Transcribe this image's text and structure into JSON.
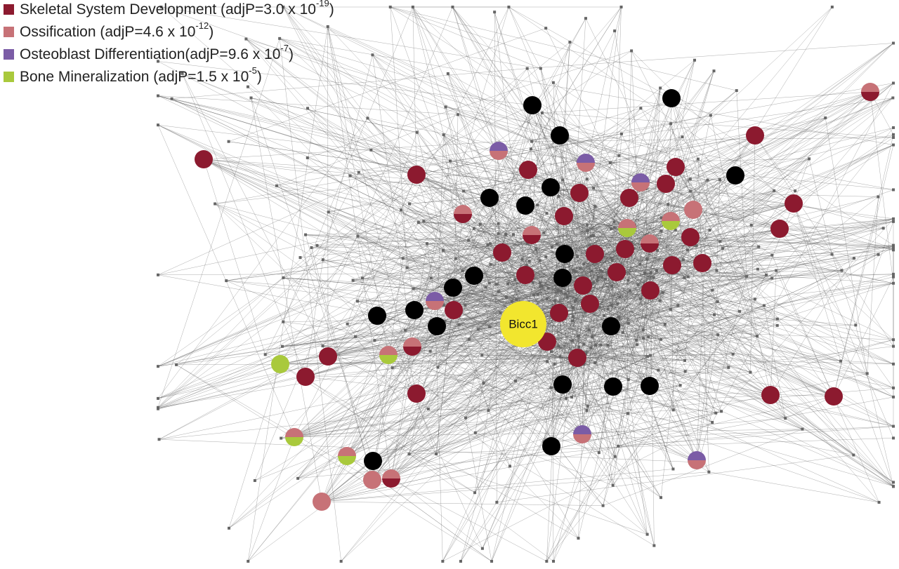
{
  "legend": {
    "items": [
      {
        "label": "Skeletal System Development (adjP=3.0 x 10",
        "exponent": "-19",
        "suffix": ")",
        "color": "#8c1a2f"
      },
      {
        "label": "Ossification (adjP=4.6 x 10",
        "exponent": "-12",
        "suffix": ")",
        "color": "#c77277"
      },
      {
        "label": "Osteoblast Differentiation(adjP=9.6 x 10",
        "exponent": "-7",
        "suffix": ")",
        "color": "#7b5ca6"
      },
      {
        "label": "Bone Mineralization (adjP=1.5 x 10",
        "exponent": "-5",
        "suffix": ")",
        "color": "#a9c93c"
      }
    ]
  },
  "nodes": [
    {
      "label": "Bicc1",
      "color": "#f2e62e"
    }
  ]
}
